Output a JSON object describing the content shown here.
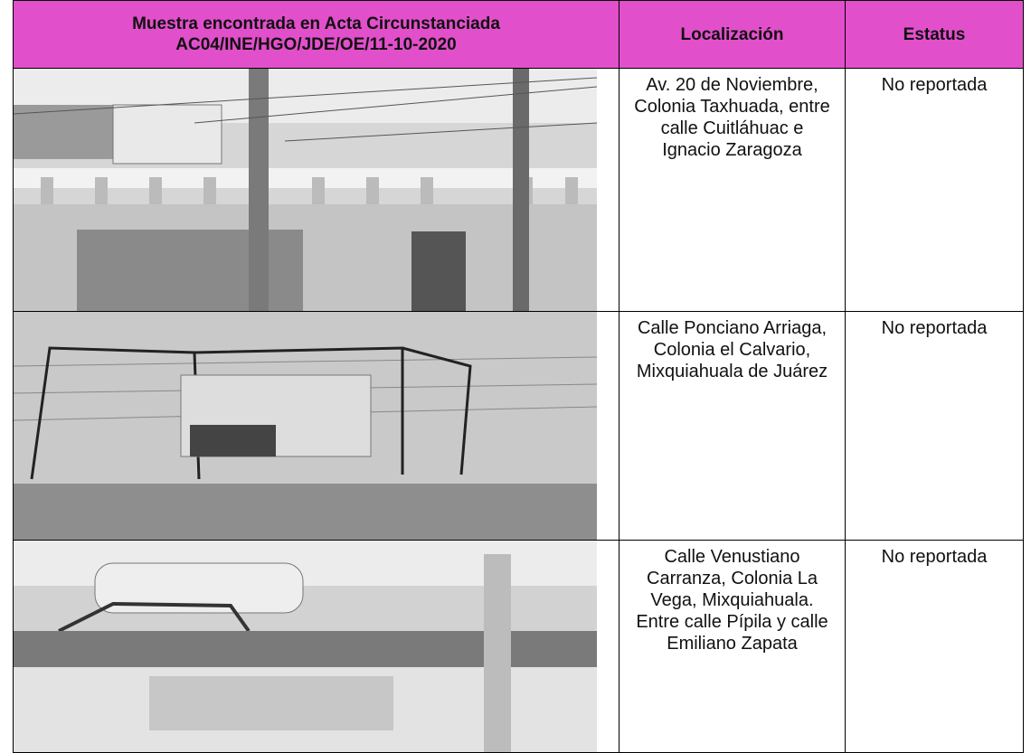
{
  "table": {
    "header": [
      "Muestra encontrada en Acta Circunstanciada AC04/INE/HGO/JDE/OE/11-10-2020",
      "Localización",
      "Estatus"
    ],
    "rows": [
      [
        "Av. 20 de Noviembre, Colonia Taxhuada, entre calle Cuitláhuac e Ignacio Zaragoza",
        "No reportada"
      ],
      [
        "Calle Ponciano Arriaga, Colonia el Calvario, Mixquiahuala de Juárez",
        "No reportada"
      ],
      [
        "Calle Venustiano Carranza, Colonia La Vega, Mixquiahuala. Entre calle Pípila y calle Emiliano Zapata",
        "No reportada"
      ]
    ]
  }
}
